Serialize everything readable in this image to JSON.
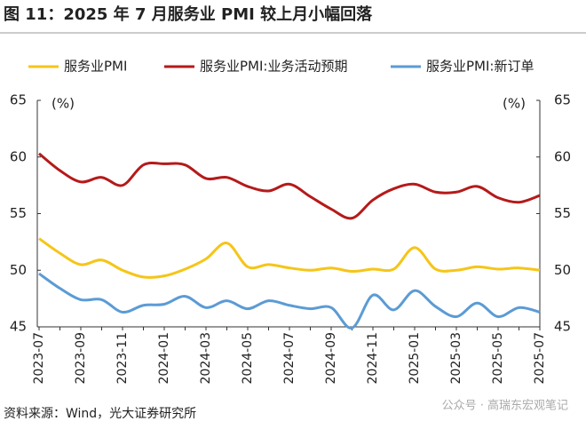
{
  "chart_data": {
    "type": "line",
    "title": "图 11：2025 年 7 月服务业 PMI 较上月小幅回落",
    "y_unit": "(%)",
    "y2_unit": "(%)",
    "source": "资料来源：Wind，光大证券研究所",
    "watermark": "公众号 · 高瑞东宏观笔记",
    "categories": [
      "2023-07",
      null,
      "2023-09",
      null,
      "2023-11",
      null,
      "2024-01",
      null,
      "2024-03",
      null,
      "2024-05",
      null,
      "2024-07",
      null,
      "2024-09",
      null,
      "2024-11",
      null,
      "2025-01",
      null,
      "2025-03",
      null,
      "2025-05",
      null,
      "2025-07"
    ],
    "series": [
      {
        "name": "服务业PMI",
        "color": "#f5c518",
        "values": [
          52.8,
          51.5,
          50.5,
          50.9,
          50.0,
          49.4,
          49.5,
          50.1,
          51.0,
          52.4,
          50.3,
          50.5,
          50.2,
          50.0,
          50.2,
          49.9,
          50.1,
          50.1,
          52.0,
          50.1,
          50.0,
          50.3,
          50.1,
          50.2,
          50.0
        ]
      },
      {
        "name": "服务业PMI:业务活动预期",
        "color": "#b51a1a",
        "values": [
          60.3,
          58.8,
          57.8,
          58.2,
          57.5,
          59.3,
          59.4,
          59.3,
          58.1,
          58.2,
          57.4,
          57.0,
          57.6,
          56.5,
          55.4,
          54.6,
          56.2,
          57.2,
          57.6,
          56.9,
          56.9,
          57.4,
          56.4,
          56.0,
          56.6
        ]
      },
      {
        "name": "服务业PMI:新订单",
        "color": "#5b9bd5",
        "values": [
          49.7,
          48.4,
          47.4,
          47.4,
          46.3,
          46.9,
          47.0,
          47.7,
          46.7,
          47.3,
          46.6,
          47.3,
          46.9,
          46.6,
          46.7,
          44.9,
          47.8,
          46.5,
          48.2,
          46.8,
          45.9,
          47.1,
          45.9,
          46.7,
          46.3
        ]
      }
    ],
    "ylim": [
      45,
      65
    ],
    "yticks": [
      45,
      50,
      55,
      60,
      65
    ],
    "y2lim": [
      45,
      65
    ],
    "y2ticks": [
      45,
      50,
      55,
      60,
      65
    ],
    "grid": false
  }
}
